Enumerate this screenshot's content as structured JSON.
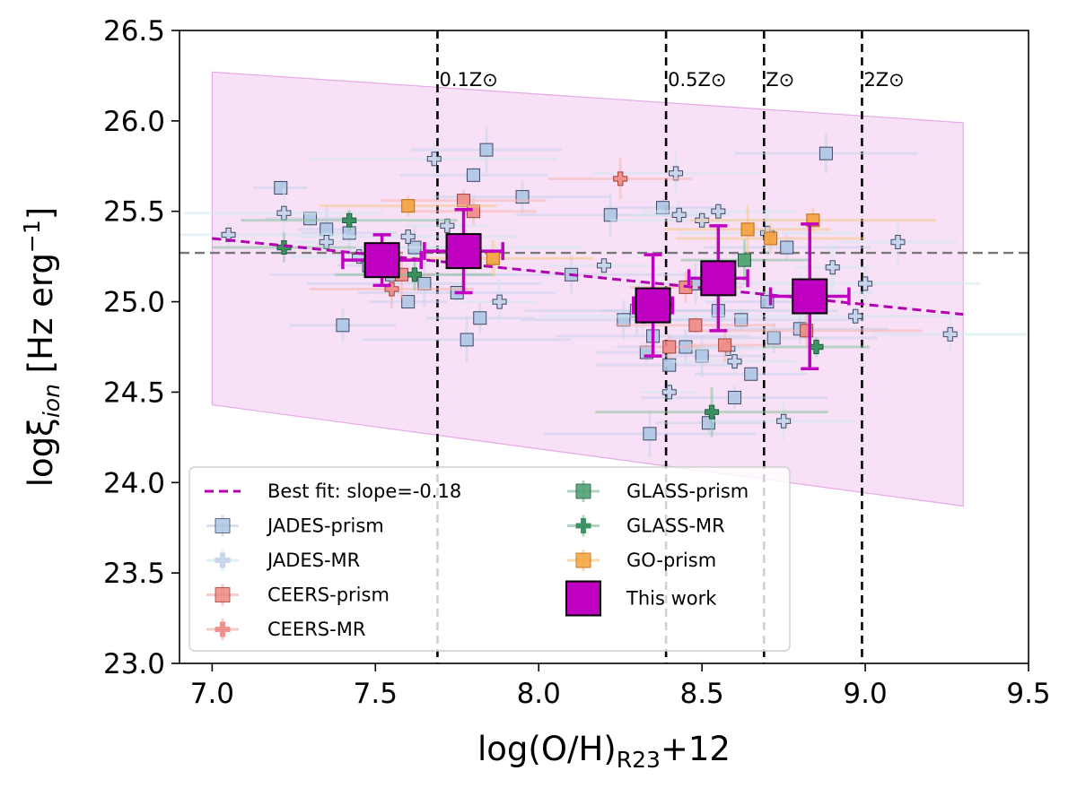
{
  "chart_data": {
    "type": "scatter",
    "title": "",
    "xlabel_main": "log(O/H)",
    "xlabel_sub": "R23",
    "xlabel_tail": "+12",
    "ylabel_main": "logξ",
    "ylabel_sub": "ion",
    "ylabel_tail": " [Hz erg",
    "ylabel_sup": "−1",
    "ylabel_close": "]",
    "xlim": [
      6.9,
      9.5
    ],
    "ylim": [
      23.0,
      26.5
    ],
    "xticks": [
      "7.0",
      "7.5",
      "8.0",
      "8.5",
      "9.0",
      "9.5"
    ],
    "yticks": [
      "23.0",
      "23.5",
      "24.0",
      "24.5",
      "25.0",
      "25.5",
      "26.0",
      "26.5"
    ],
    "grid": false,
    "legend_position": "lower-left",
    "reference_line_y": 25.27,
    "metallicity_lines": [
      {
        "x": 7.69,
        "label": "0.1Z⊙"
      },
      {
        "x": 8.39,
        "label": "0.5Z⊙"
      },
      {
        "x": 8.69,
        "label": "Z⊙"
      },
      {
        "x": 8.99,
        "label": "2Z⊙"
      }
    ],
    "best_fit": {
      "label": "Best fit: slope=-0.18",
      "x": [
        7.0,
        9.3
      ],
      "y": [
        25.35,
        24.93
      ]
    },
    "confidence_band": {
      "x": [
        7.0,
        9.3
      ],
      "upper": [
        26.27,
        25.99
      ],
      "lower": [
        24.43,
        23.87
      ]
    },
    "colors": {
      "jades": "#aec7e3",
      "jades_mr": "#a9d6e5",
      "ceers": "#f08a84",
      "glass": "#2e8b57",
      "go": "#f4a23c",
      "thiswork": "#c000c0",
      "fit": "#b000b0",
      "band": "#f3c9f0"
    },
    "series": [
      {
        "name": "JADES-prism",
        "marker": "square",
        "points": [
          [
            7.21,
            25.63
          ],
          [
            7.3,
            25.46
          ],
          [
            7.35,
            25.4
          ],
          [
            7.4,
            24.87
          ],
          [
            7.42,
            25.38
          ],
          [
            7.48,
            25.2
          ],
          [
            7.55,
            25.15
          ],
          [
            7.6,
            25.0
          ],
          [
            7.62,
            25.3
          ],
          [
            7.65,
            25.1
          ],
          [
            7.75,
            25.05
          ],
          [
            7.78,
            24.79
          ],
          [
            7.8,
            25.7
          ],
          [
            7.82,
            24.91
          ],
          [
            7.84,
            25.84
          ],
          [
            7.95,
            25.58
          ],
          [
            8.1,
            25.15
          ],
          [
            8.22,
            25.48
          ],
          [
            8.26,
            24.9
          ],
          [
            8.3,
            24.95
          ],
          [
            8.33,
            24.72
          ],
          [
            8.35,
            24.81
          ],
          [
            8.38,
            25.52
          ],
          [
            8.4,
            24.65
          ],
          [
            8.45,
            24.75
          ],
          [
            8.48,
            25.1
          ],
          [
            8.5,
            24.7
          ],
          [
            8.55,
            24.95
          ],
          [
            8.6,
            24.47
          ],
          [
            8.62,
            24.9
          ],
          [
            8.65,
            24.6
          ],
          [
            8.7,
            25.0
          ],
          [
            8.72,
            24.8
          ],
          [
            8.76,
            25.3
          ],
          [
            8.8,
            24.85
          ],
          [
            8.88,
            25.82
          ],
          [
            8.52,
            24.33
          ],
          [
            8.34,
            24.27
          ]
        ]
      },
      {
        "name": "JADES-MR",
        "marker": "plus",
        "points": [
          [
            7.05,
            25.37
          ],
          [
            7.22,
            25.49
          ],
          [
            7.35,
            25.33
          ],
          [
            7.45,
            25.25
          ],
          [
            7.6,
            25.36
          ],
          [
            7.72,
            25.42
          ],
          [
            7.8,
            25.3
          ],
          [
            7.88,
            25.0
          ],
          [
            7.68,
            25.79
          ],
          [
            8.2,
            25.2
          ],
          [
            8.32,
            24.92
          ],
          [
            8.4,
            24.5
          ],
          [
            8.43,
            25.48
          ],
          [
            8.5,
            25.45
          ],
          [
            8.55,
            25.5
          ],
          [
            8.58,
            24.74
          ],
          [
            8.6,
            24.67
          ],
          [
            8.7,
            25.38
          ],
          [
            8.75,
            24.34
          ],
          [
            8.8,
            25.05
          ],
          [
            8.9,
            25.19
          ],
          [
            8.97,
            24.92
          ],
          [
            9.0,
            25.1
          ],
          [
            9.1,
            25.33
          ],
          [
            9.26,
            24.82
          ],
          [
            8.42,
            25.71
          ]
        ]
      },
      {
        "name": "CEERS-prism",
        "marker": "square",
        "points": [
          [
            7.58,
            25.15
          ],
          [
            7.77,
            25.56
          ],
          [
            7.8,
            25.5
          ],
          [
            8.45,
            25.08
          ],
          [
            8.48,
            24.87
          ],
          [
            8.57,
            24.76
          ],
          [
            8.4,
            24.75
          ],
          [
            8.82,
            24.84
          ]
        ]
      },
      {
        "name": "CEERS-MR",
        "marker": "plus",
        "points": [
          [
            7.55,
            25.07
          ],
          [
            8.25,
            25.68
          ]
        ]
      },
      {
        "name": "GLASS-prism",
        "marker": "square",
        "points": [
          [
            8.63,
            25.23
          ]
        ]
      },
      {
        "name": "GLASS-MR",
        "marker": "plus",
        "points": [
          [
            7.22,
            25.3
          ],
          [
            7.42,
            25.45
          ],
          [
            7.62,
            25.15
          ],
          [
            8.53,
            24.39
          ],
          [
            8.85,
            24.75
          ]
        ]
      },
      {
        "name": "GO-prism",
        "marker": "square",
        "points": [
          [
            7.6,
            25.53
          ],
          [
            7.86,
            25.24
          ],
          [
            8.64,
            25.4
          ],
          [
            8.71,
            25.35
          ],
          [
            8.84,
            25.45
          ]
        ]
      },
      {
        "name": "This work",
        "marker": "bigsquare",
        "points": [
          {
            "x": 7.52,
            "y": 25.23,
            "xerr": 0.12,
            "yerr": 0.14
          },
          {
            "x": 7.77,
            "y": 25.28,
            "xerr": 0.12,
            "yerr": 0.23
          },
          {
            "x": 8.35,
            "y": 24.98,
            "xerr": 0.06,
            "yerr": 0.28
          },
          {
            "x": 8.55,
            "y": 25.13,
            "xerr": 0.09,
            "yerr": 0.29
          },
          {
            "x": 8.83,
            "y": 25.03,
            "xerr": 0.12,
            "yerr": 0.4
          }
        ]
      }
    ],
    "legend": {
      "left": [
        "Best fit: slope=-0.18",
        "JADES-prism",
        "JADES-MR",
        "CEERS-prism",
        "CEERS-MR"
      ],
      "right": [
        "GLASS-prism",
        "GLASS-MR",
        "GO-prism",
        "This work"
      ]
    }
  }
}
